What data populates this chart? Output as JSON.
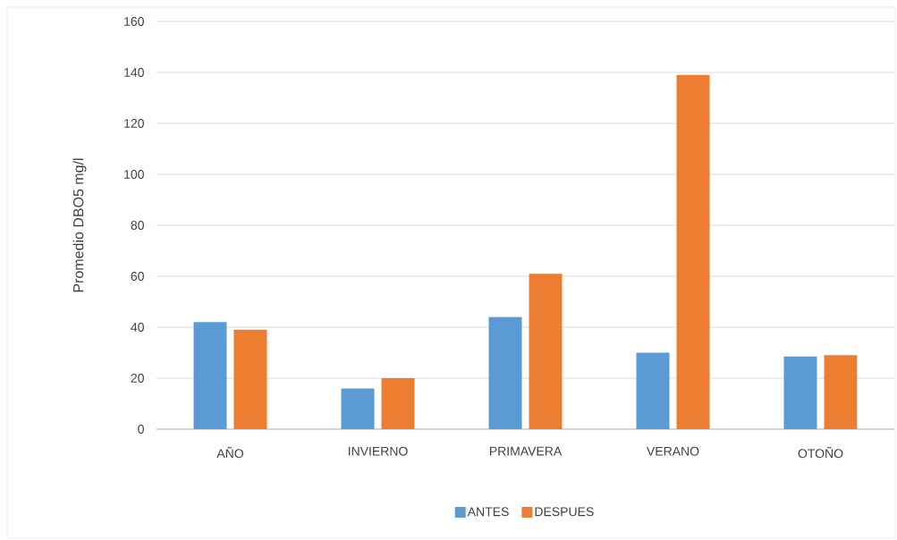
{
  "chart_data": {
    "type": "bar",
    "ylabel": "Promedio DBO5 mg/l",
    "categories": [
      "AÑO",
      "INVIERNO",
      "PRIMAVERA",
      "VERANO",
      "OTOÑO"
    ],
    "series": [
      {
        "name": "ANTES",
        "color": "#5b9bd5",
        "values": [
          42,
          16,
          44,
          30,
          28.5
        ]
      },
      {
        "name": "DESPUES",
        "color": "#ed7d31",
        "values": [
          39,
          20,
          61,
          139,
          29
        ]
      }
    ],
    "ylim": [
      0,
      160
    ],
    "yticks": [
      0,
      20,
      40,
      60,
      80,
      100,
      120,
      140,
      160
    ],
    "grid": "y",
    "legend": "bottom"
  }
}
